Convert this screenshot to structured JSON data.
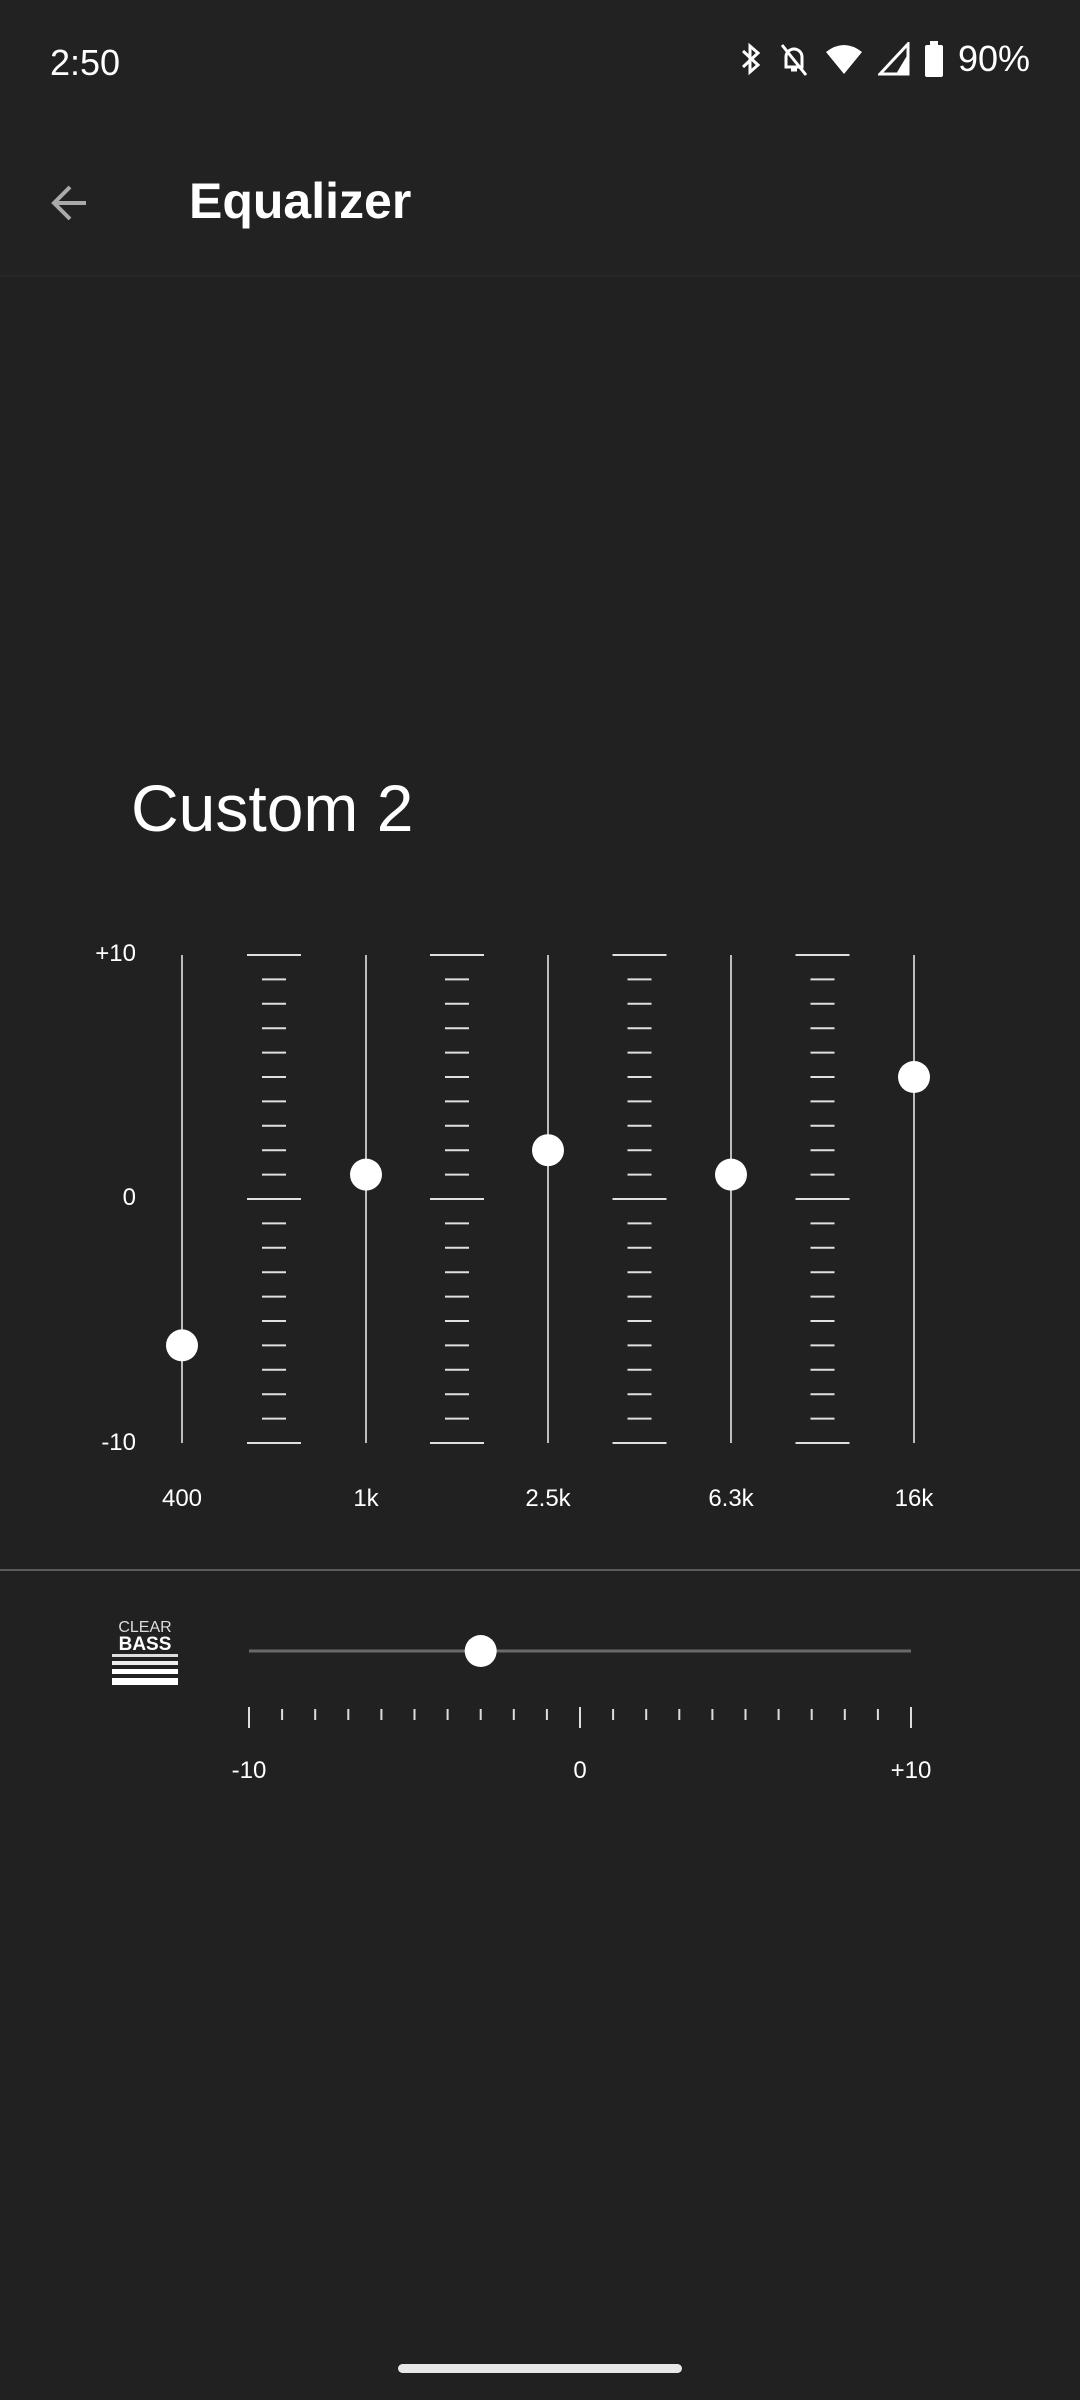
{
  "status_bar": {
    "time": "2:50",
    "battery": "90%",
    "icons": [
      "bluetooth-icon",
      "bell-off-icon",
      "wifi-icon",
      "signal-icon",
      "battery-icon"
    ]
  },
  "app_bar": {
    "title": "Equalizer",
    "back_icon": "arrow-back-icon"
  },
  "preset": {
    "name": "Custom 2"
  },
  "equalizer": {
    "scale_labels": {
      "max": "+10",
      "mid": "0",
      "min": "-10"
    },
    "range": [
      -10,
      10
    ],
    "bands": [
      {
        "label": "400",
        "value": -6
      },
      {
        "label": "1k",
        "value": 1
      },
      {
        "label": "2.5k",
        "value": 2
      },
      {
        "label": "6.3k",
        "value": 1
      },
      {
        "label": "16k",
        "value": 5
      }
    ]
  },
  "clear_bass": {
    "logo_text": [
      "CLEAR",
      "BASS"
    ],
    "value": -3,
    "range": [
      -10,
      10
    ],
    "labels": {
      "min": "-10",
      "mid": "0",
      "max": "+10"
    }
  },
  "colors": {
    "background": "#212121",
    "track": "#bdbdbd",
    "thumb": "#ffffff"
  }
}
